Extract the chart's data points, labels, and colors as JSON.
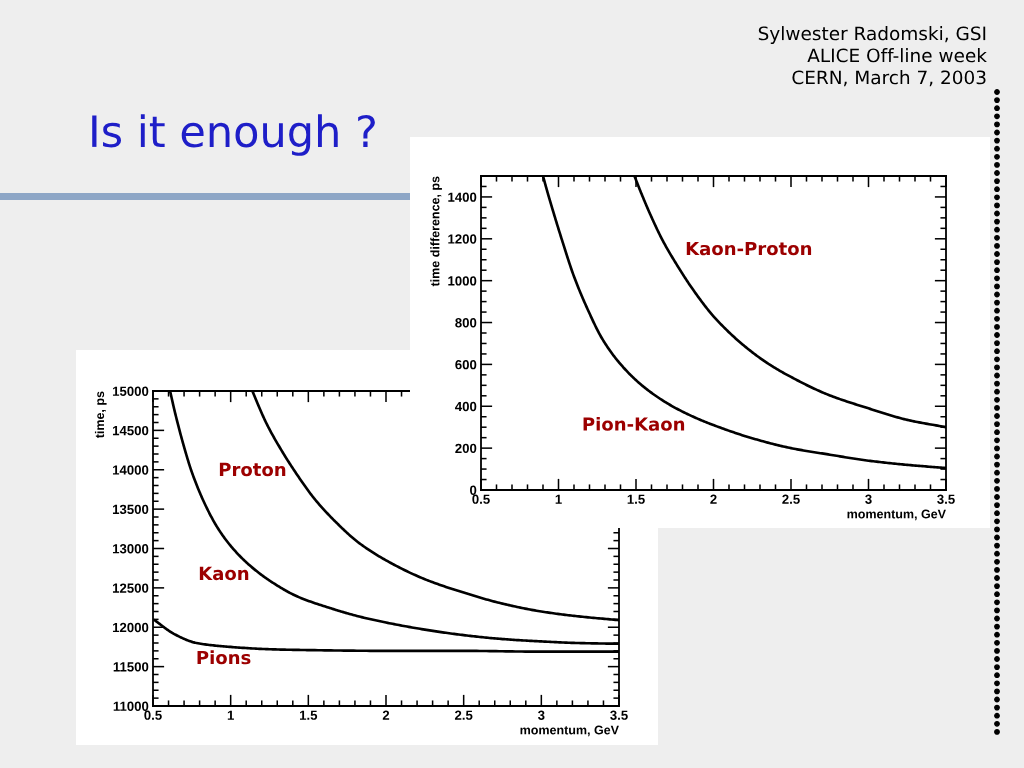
{
  "chart_data": [
    {
      "type": "line",
      "title": "Is it enough ?",
      "annotations": [
        "Sylwester Radomski, GSI",
        "ALICE Off-line week",
        "CERN, March 7, 2003"
      ],
      "xlabel": "momentum, GeV",
      "ylabel": "time difference, ps",
      "xlim": [
        0.5,
        3.5
      ],
      "ylim": [
        0,
        1500
      ],
      "xticks": [
        0.5,
        1,
        1.5,
        2,
        2.5,
        3,
        3.5
      ],
      "yticks": [
        0,
        200,
        400,
        600,
        800,
        1000,
        1200,
        1400
      ],
      "series": [
        {
          "name": "Kaon-Proton",
          "color": "#000000",
          "x": [
            1.49,
            1.53,
            1.59,
            1.67,
            1.76,
            1.87,
            2.0,
            2.18,
            2.35,
            2.5,
            2.74,
            3.0,
            3.25,
            3.5
          ],
          "values": [
            1500,
            1425,
            1320,
            1195,
            1080,
            955,
            830,
            700,
            605,
            540,
            455,
            390,
            335,
            300
          ]
        },
        {
          "name": "Pion-Kaon",
          "color": "#000000",
          "x": [
            0.9,
            0.93,
            0.97,
            1.02,
            1.1,
            1.19,
            1.28,
            1.39,
            1.53,
            1.7,
            1.84,
            2.0,
            2.26,
            2.5,
            2.74,
            3.0,
            3.25,
            3.5
          ],
          "values": [
            1500,
            1420,
            1320,
            1200,
            1020,
            860,
            725,
            610,
            505,
            415,
            360,
            310,
            245,
            200,
            170,
            140,
            120,
            105
          ]
        }
      ]
    },
    {
      "type": "line",
      "xlabel": "momentum, GeV",
      "ylabel": "time, ps",
      "xlim": [
        0.5,
        3.5
      ],
      "ylim": [
        11000,
        15000
      ],
      "xticks": [
        0.5,
        1,
        1.5,
        2,
        2.5,
        3,
        3.5
      ],
      "yticks": [
        11000,
        11500,
        12000,
        12500,
        13000,
        13500,
        14000,
        14500,
        15000
      ],
      "series": [
        {
          "name": "Proton",
          "color": "#000000",
          "x": [
            1.14,
            1.18,
            1.23,
            1.32,
            1.43,
            1.54,
            1.68,
            1.82,
            2.0,
            2.25,
            2.5,
            2.75,
            3.0,
            3.23,
            3.5
          ],
          "values": [
            15000,
            14810,
            14590,
            14270,
            13930,
            13630,
            13330,
            13080,
            12850,
            12610,
            12440,
            12300,
            12200,
            12140,
            12090
          ]
        },
        {
          "name": "Kaon",
          "color": "#000000",
          "x": [
            0.61,
            0.64,
            0.7,
            0.75,
            0.84,
            0.92,
            1.01,
            1.12,
            1.26,
            1.43,
            1.63,
            1.82,
            2.0,
            2.25,
            2.5,
            2.75,
            3.0,
            3.23,
            3.5
          ],
          "values": [
            15000,
            14740,
            14290,
            13970,
            13540,
            13250,
            13010,
            12790,
            12580,
            12390,
            12250,
            12140,
            12060,
            11970,
            11900,
            11850,
            11820,
            11800,
            11790
          ]
        },
        {
          "name": "Pions",
          "color": "#000000",
          "x": [
            0.51,
            0.64,
            0.78,
            1.0,
            1.26,
            1.5,
            2.0,
            2.5,
            3.0,
            3.5
          ],
          "values": [
            12090,
            11910,
            11800,
            11750,
            11720,
            11710,
            11700,
            11700,
            11690,
            11690
          ]
        }
      ]
    }
  ]
}
